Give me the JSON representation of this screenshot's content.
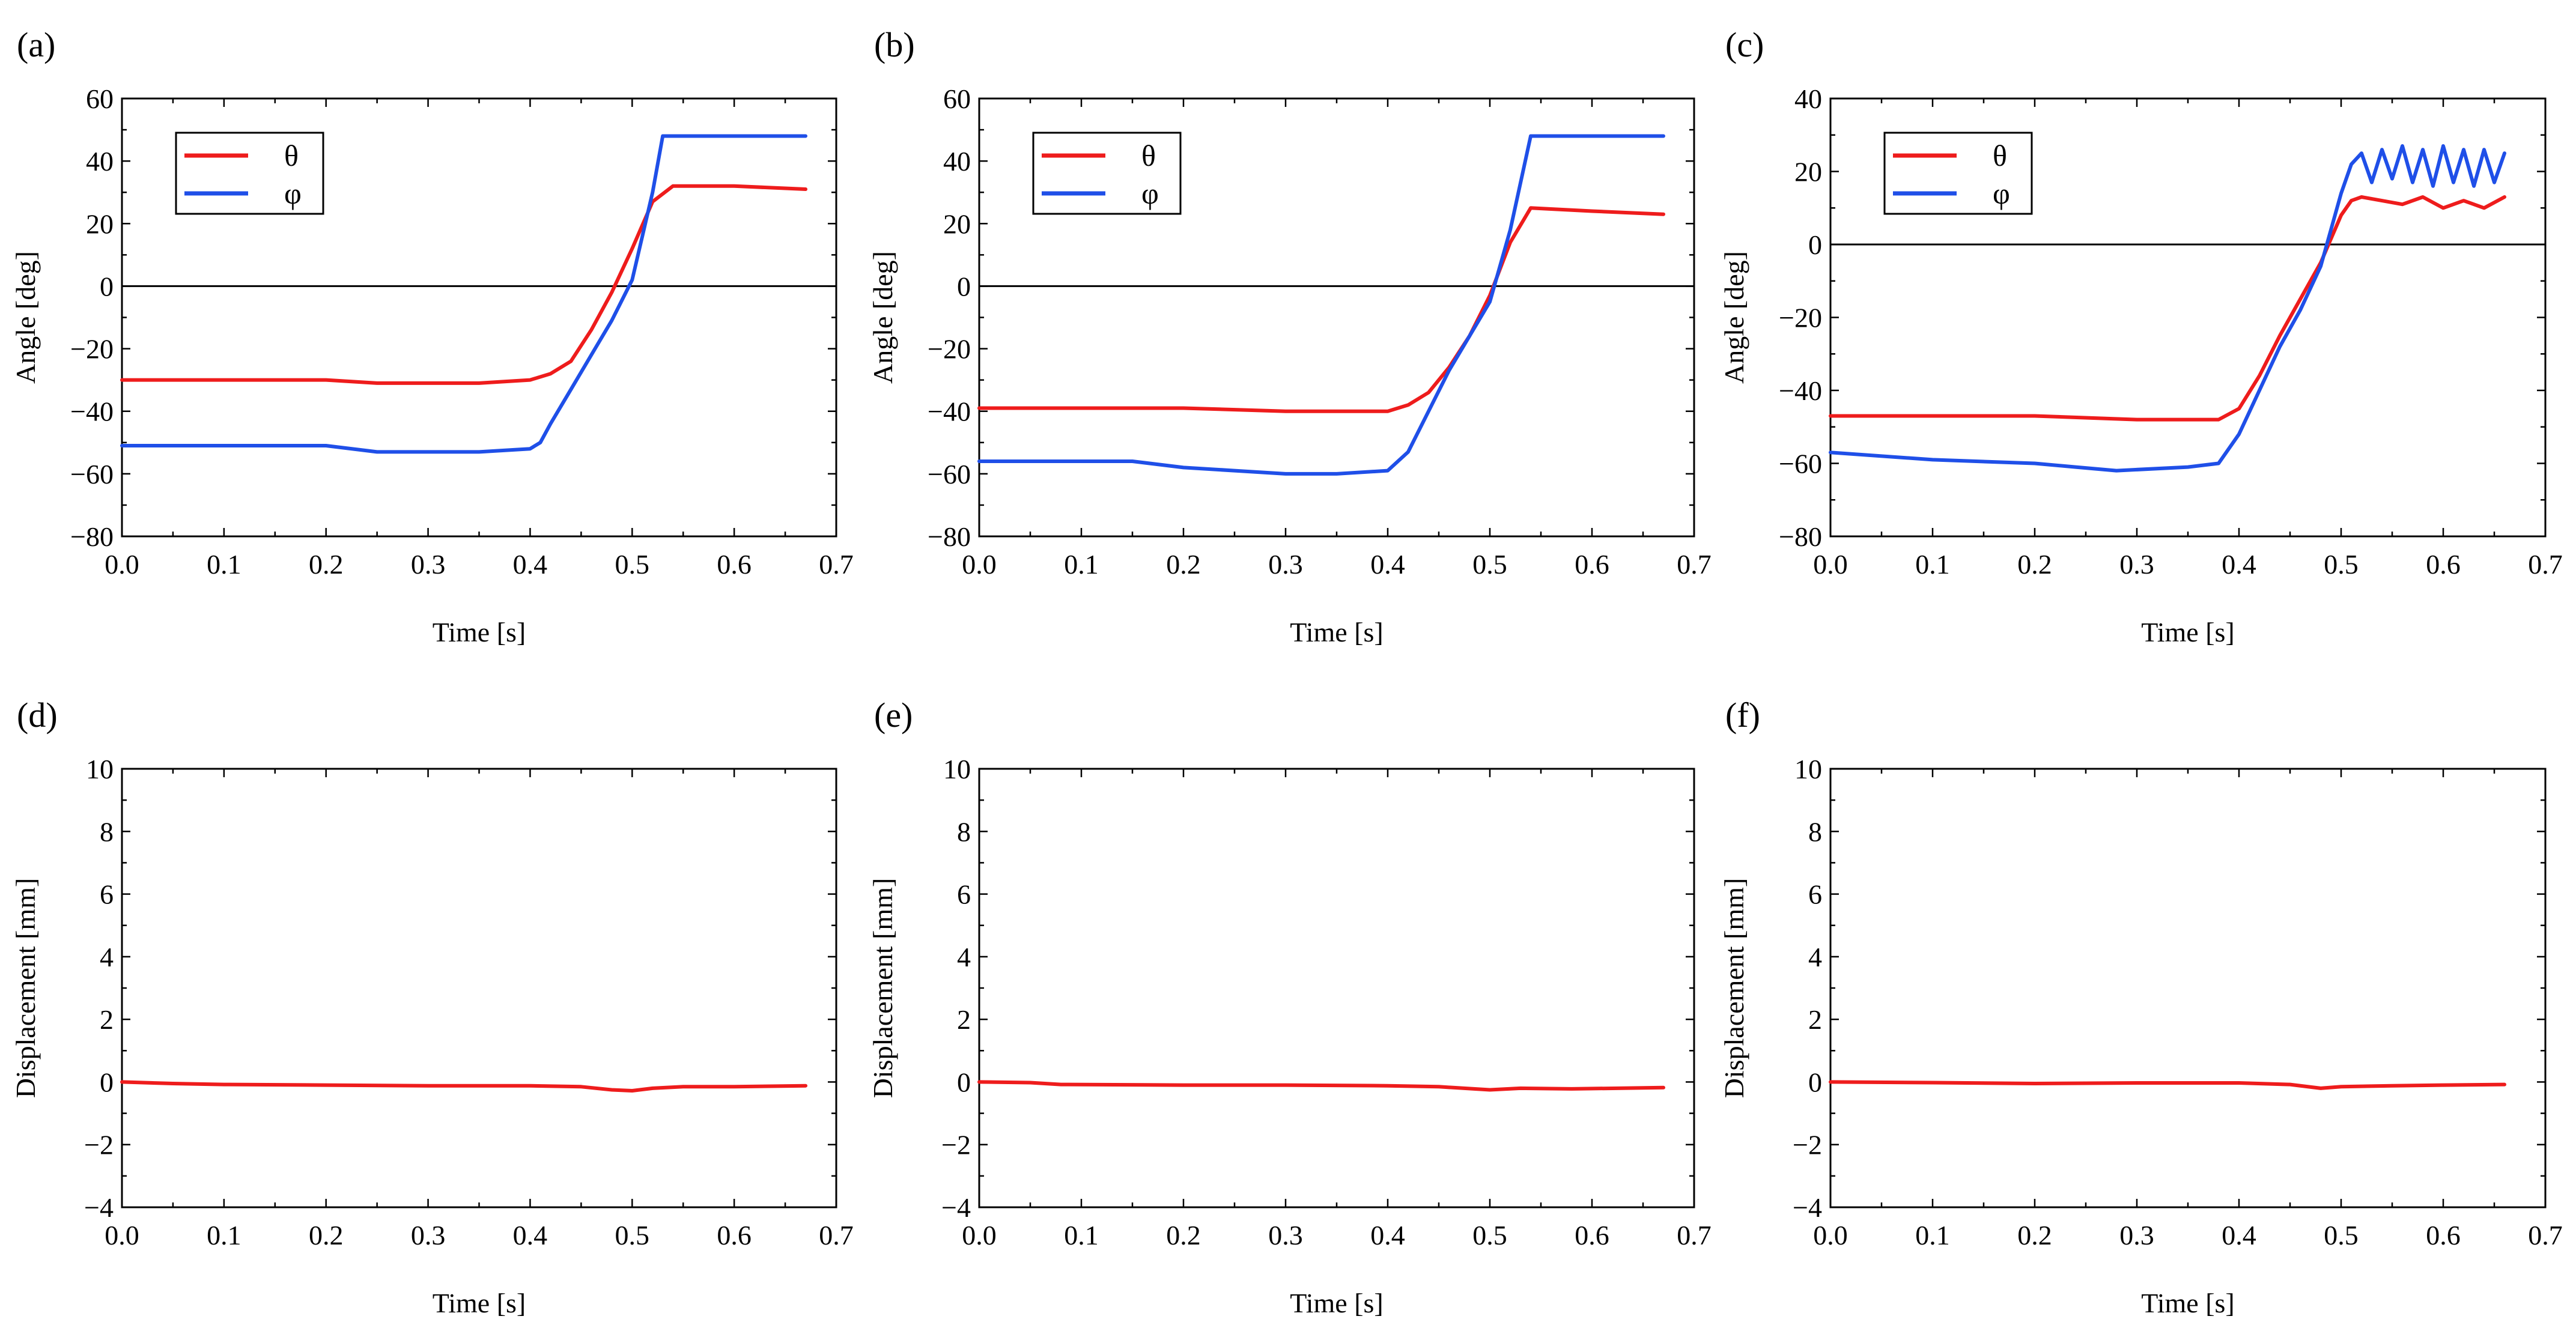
{
  "chart_data": [
    {
      "panel": "(a)",
      "type": "line",
      "xlabel": "Time [s]",
      "ylabel": "Angle [deg]",
      "xlim": [
        0.0,
        0.7
      ],
      "ylim": [
        -80,
        60
      ],
      "xticks": [
        "0.0",
        "0.1",
        "0.2",
        "0.3",
        "0.4",
        "0.5",
        "0.6",
        "0.7"
      ],
      "yticks": [
        "60",
        "40",
        "20",
        "0",
        "-20",
        "-40",
        "-60",
        "-80"
      ],
      "zero_line": true,
      "legend": true,
      "series": [
        {
          "name": "θ",
          "color": "#ee1c1c",
          "x": [
            0.0,
            0.1,
            0.2,
            0.25,
            0.3,
            0.35,
            0.4,
            0.42,
            0.44,
            0.46,
            0.48,
            0.5,
            0.52,
            0.54,
            0.6,
            0.67
          ],
          "y": [
            -30,
            -30,
            -30,
            -31,
            -31,
            -31,
            -30,
            -28,
            -24,
            -14,
            -2,
            12,
            27,
            32,
            32,
            31
          ]
        },
        {
          "name": "φ",
          "color": "#1f4fe8",
          "x": [
            0.0,
            0.1,
            0.2,
            0.25,
            0.3,
            0.35,
            0.4,
            0.41,
            0.42,
            0.44,
            0.46,
            0.48,
            0.5,
            0.52,
            0.53,
            0.6,
            0.67
          ],
          "y": [
            -51,
            -51,
            -51,
            -53,
            -53,
            -53,
            -52,
            -50,
            -44,
            -33,
            -22,
            -11,
            2,
            30,
            48,
            48,
            48
          ]
        }
      ]
    },
    {
      "panel": "(b)",
      "type": "line",
      "xlabel": "Time [s]",
      "ylabel": "Angle [deg]",
      "xlim": [
        0.0,
        0.7
      ],
      "ylim": [
        -80,
        60
      ],
      "xticks": [
        "0.0",
        "0.1",
        "0.2",
        "0.3",
        "0.4",
        "0.5",
        "0.6",
        "0.7"
      ],
      "yticks": [
        "60",
        "40",
        "20",
        "0",
        "-20",
        "-40",
        "-60",
        "-80"
      ],
      "zero_line": true,
      "legend": true,
      "series": [
        {
          "name": "θ",
          "color": "#ee1c1c",
          "x": [
            0.0,
            0.1,
            0.2,
            0.3,
            0.4,
            0.42,
            0.44,
            0.46,
            0.48,
            0.5,
            0.52,
            0.54,
            0.6,
            0.67
          ],
          "y": [
            -39,
            -39,
            -39,
            -40,
            -40,
            -38,
            -34,
            -26,
            -16,
            -3,
            14,
            25,
            24,
            23
          ]
        },
        {
          "name": "φ",
          "color": "#1f4fe8",
          "x": [
            0.0,
            0.05,
            0.1,
            0.15,
            0.2,
            0.25,
            0.3,
            0.35,
            0.4,
            0.42,
            0.44,
            0.46,
            0.48,
            0.5,
            0.52,
            0.54,
            0.6,
            0.67
          ],
          "y": [
            -56,
            -56,
            -56,
            -56,
            -58,
            -59,
            -60,
            -60,
            -59,
            -53,
            -40,
            -27,
            -16,
            -5,
            18,
            48,
            48,
            48
          ]
        }
      ]
    },
    {
      "panel": "(c)",
      "type": "line",
      "xlabel": "Time [s]",
      "ylabel": "Angle [deg]",
      "xlim": [
        0.0,
        0.7
      ],
      "ylim": [
        -80,
        40
      ],
      "xticks": [
        "0.0",
        "0.1",
        "0.2",
        "0.3",
        "0.4",
        "0.5",
        "0.6",
        "0.7"
      ],
      "yticks": [
        "40",
        "20",
        "0",
        "-20",
        "-40",
        "-60",
        "-80"
      ],
      "zero_line": true,
      "legend": true,
      "series": [
        {
          "name": "θ",
          "color": "#ee1c1c",
          "x": [
            0.0,
            0.1,
            0.2,
            0.3,
            0.38,
            0.4,
            0.42,
            0.44,
            0.46,
            0.48,
            0.5,
            0.51,
            0.52,
            0.54,
            0.56,
            0.58,
            0.6,
            0.62,
            0.64,
            0.66
          ],
          "y": [
            -47,
            -47,
            -47,
            -48,
            -48,
            -45,
            -36,
            -25,
            -15,
            -5,
            8,
            12,
            13,
            12,
            11,
            13,
            10,
            12,
            10,
            13
          ]
        },
        {
          "name": "φ",
          "color": "#1f4fe8",
          "x": [
            0.0,
            0.1,
            0.2,
            0.24,
            0.28,
            0.35,
            0.38,
            0.4,
            0.42,
            0.44,
            0.46,
            0.48,
            0.5,
            0.51,
            0.52,
            0.53,
            0.54,
            0.55,
            0.56,
            0.57,
            0.58,
            0.59,
            0.6,
            0.61,
            0.62,
            0.63,
            0.64,
            0.65,
            0.66
          ],
          "y": [
            -57,
            -59,
            -60,
            -61,
            -62,
            -61,
            -60,
            -52,
            -40,
            -28,
            -18,
            -6,
            14,
            22,
            25,
            17,
            26,
            18,
            27,
            17,
            26,
            16,
            27,
            17,
            26,
            16,
            26,
            17,
            25
          ]
        }
      ]
    },
    {
      "panel": "(d)",
      "type": "line",
      "xlabel": "Time [s]",
      "ylabel": "Displacement [mm]",
      "xlim": [
        0.0,
        0.7
      ],
      "ylim": [
        -4,
        10
      ],
      "xticks": [
        "0.0",
        "0.1",
        "0.2",
        "0.3",
        "0.4",
        "0.5",
        "0.6",
        "0.7"
      ],
      "yticks": [
        "10",
        "8",
        "6",
        "4",
        "2",
        "0",
        "-2",
        "-4"
      ],
      "zero_line": false,
      "legend": false,
      "series": [
        {
          "name": "displacement",
          "color": "#ee1c1c",
          "x": [
            0.0,
            0.05,
            0.1,
            0.2,
            0.3,
            0.4,
            0.45,
            0.48,
            0.5,
            0.52,
            0.55,
            0.6,
            0.67
          ],
          "y": [
            0.0,
            -0.05,
            -0.08,
            -0.1,
            -0.12,
            -0.12,
            -0.15,
            -0.25,
            -0.28,
            -0.2,
            -0.15,
            -0.15,
            -0.12
          ]
        }
      ]
    },
    {
      "panel": "(e)",
      "type": "line",
      "xlabel": "Time [s]",
      "ylabel": "Displacement [mm]",
      "xlim": [
        0.0,
        0.7
      ],
      "ylim": [
        -4,
        10
      ],
      "xticks": [
        "0.0",
        "0.1",
        "0.2",
        "0.3",
        "0.4",
        "0.5",
        "0.6",
        "0.7"
      ],
      "yticks": [
        "10",
        "8",
        "6",
        "4",
        "2",
        "0",
        "-2",
        "-4"
      ],
      "zero_line": false,
      "legend": false,
      "series": [
        {
          "name": "displacement",
          "color": "#ee1c1c",
          "x": [
            0.0,
            0.05,
            0.08,
            0.2,
            0.3,
            0.4,
            0.45,
            0.5,
            0.53,
            0.58,
            0.67
          ],
          "y": [
            0.0,
            -0.02,
            -0.08,
            -0.1,
            -0.1,
            -0.12,
            -0.15,
            -0.25,
            -0.2,
            -0.22,
            -0.18
          ]
        }
      ]
    },
    {
      "panel": "(f)",
      "type": "line",
      "xlabel": "Time [s]",
      "ylabel": "Displacement [mm]",
      "xlim": [
        0.0,
        0.7
      ],
      "ylim": [
        -4,
        10
      ],
      "xticks": [
        "0.0",
        "0.1",
        "0.2",
        "0.3",
        "0.4",
        "0.5",
        "0.6",
        "0.7"
      ],
      "yticks": [
        "10",
        "8",
        "6",
        "4",
        "2",
        "0",
        "-2",
        "-4"
      ],
      "zero_line": false,
      "legend": false,
      "series": [
        {
          "name": "displacement",
          "color": "#ee1c1c",
          "x": [
            0.0,
            0.1,
            0.2,
            0.3,
            0.4,
            0.45,
            0.48,
            0.5,
            0.55,
            0.6,
            0.66
          ],
          "y": [
            0.0,
            -0.02,
            -0.05,
            -0.03,
            -0.03,
            -0.08,
            -0.2,
            -0.15,
            -0.12,
            -0.1,
            -0.08
          ]
        }
      ]
    }
  ]
}
